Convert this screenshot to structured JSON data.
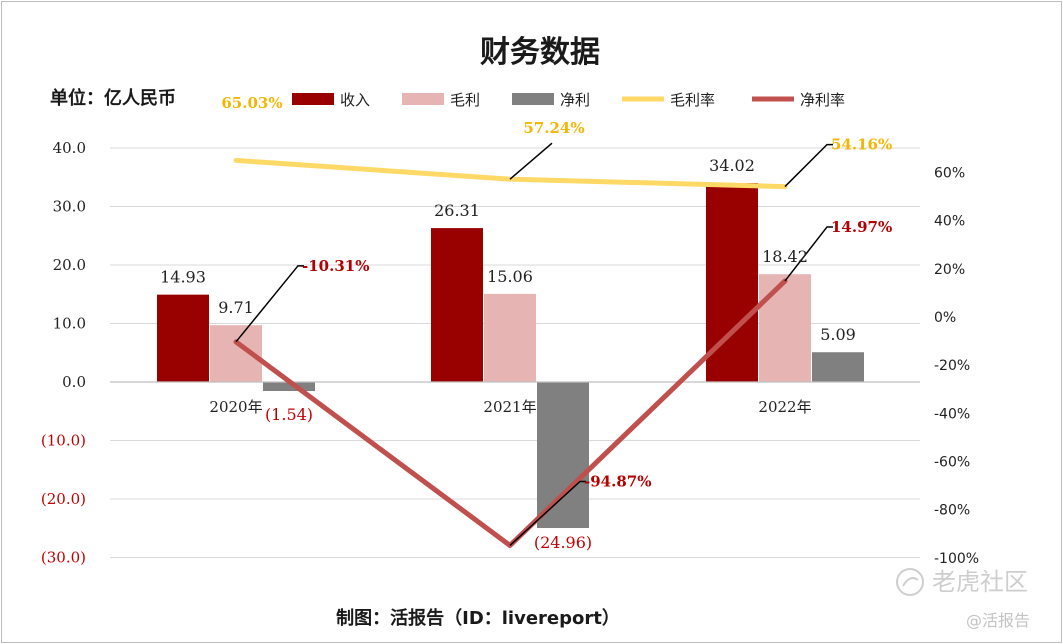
{
  "chart_data": {
    "type": "bar",
    "title": "财务数据",
    "unit_label": "单位：亿人民币",
    "categories": [
      "2020年",
      "2021年",
      "2022年"
    ],
    "series": [
      {
        "name": "收入",
        "type": "bar",
        "axis": "left",
        "color": "#990000",
        "values": [
          14.93,
          26.31,
          34.02
        ],
        "labels": [
          "14.93",
          "26.31",
          "34.02"
        ]
      },
      {
        "name": "毛利",
        "type": "bar",
        "axis": "left",
        "color": "#e6b4b3",
        "values": [
          9.71,
          15.06,
          18.42
        ],
        "labels": [
          "9.71",
          "15.06",
          "18.42"
        ]
      },
      {
        "name": "净利",
        "type": "bar",
        "axis": "left",
        "color": "#808080",
        "values": [
          -1.54,
          -24.96,
          5.09
        ],
        "labels": [
          "(1.54)",
          "(24.96)",
          "5.09"
        ]
      },
      {
        "name": "毛利率",
        "type": "line",
        "axis": "right",
        "color": "#ffd966",
        "values": [
          65.03,
          57.24,
          54.16
        ],
        "labels": [
          "65.03%",
          "57.24%",
          "54.16%"
        ]
      },
      {
        "name": "净利率",
        "type": "line",
        "axis": "right",
        "color": "#c0504d",
        "values": [
          -10.31,
          -94.87,
          14.97
        ],
        "labels": [
          "-10.31%",
          "-94.87%",
          "14.97%"
        ]
      }
    ],
    "y_left": {
      "range": [
        -30,
        40
      ],
      "ticks": [
        "40.0",
        "30.0",
        "20.0",
        "10.0",
        "0.0",
        "(10.0)",
        "(20.0)",
        "(30.0)"
      ],
      "tick_values": [
        40,
        30,
        20,
        10,
        0,
        -10,
        -20,
        -30
      ]
    },
    "y_right": {
      "range": [
        -100,
        60
      ],
      "ticks": [
        "60%",
        "40%",
        "20%",
        "0%",
        "-20%",
        "-40%",
        "-60%",
        "-80%",
        "-100%"
      ],
      "tick_values": [
        60,
        40,
        20,
        0,
        -20,
        -40,
        -60,
        -80,
        -100
      ]
    },
    "grid": true,
    "legend_position": "top"
  },
  "footer": "制图：活报告（ID：livereport）",
  "watermark": {
    "main": "老虎社区",
    "sub": "@活报告"
  }
}
